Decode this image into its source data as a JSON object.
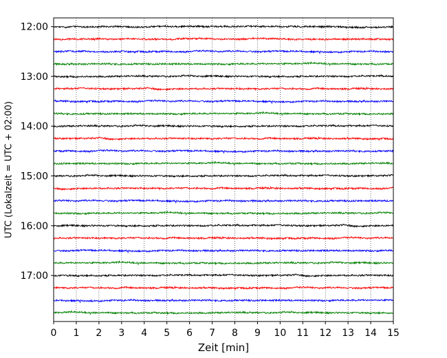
{
  "chart_data": {
    "type": "line",
    "title": "",
    "xlabel": "Zeit  [min]",
    "ylabel": "UTC (Lokalzeit = UTC + 02:00)",
    "xlim": [
      0,
      15
    ],
    "x_ticks": [
      0,
      1,
      2,
      3,
      4,
      5,
      6,
      7,
      8,
      9,
      10,
      11,
      12,
      13,
      14,
      15
    ],
    "x_tick_labels": [
      "0",
      "1",
      "2",
      "3",
      "4",
      "5",
      "6",
      "7",
      "8",
      "9",
      "10",
      "11",
      "12",
      "13",
      "14",
      "15"
    ],
    "y_range_rows": [
      -0.7,
      23.7
    ],
    "y_tick_labels": [
      "12:00",
      "13:00",
      "14:00",
      "15:00",
      "16:00",
      "17:00"
    ],
    "y_tick_rows": [
      0,
      4,
      8,
      12,
      16,
      20
    ],
    "grid": "vertical dotted at each minute",
    "row_interval_minutes": 15,
    "series_colors": [
      "#000000",
      "#ff0000",
      "#0000ff",
      "#008000"
    ],
    "traces": [
      {
        "start": "12:00",
        "color": "#000000"
      },
      {
        "start": "12:15",
        "color": "#ff0000"
      },
      {
        "start": "12:30",
        "color": "#0000ff"
      },
      {
        "start": "12:45",
        "color": "#008000"
      },
      {
        "start": "13:00",
        "color": "#000000"
      },
      {
        "start": "13:15",
        "color": "#ff0000"
      },
      {
        "start": "13:30",
        "color": "#0000ff"
      },
      {
        "start": "13:45",
        "color": "#008000"
      },
      {
        "start": "14:00",
        "color": "#000000"
      },
      {
        "start": "14:15",
        "color": "#ff0000"
      },
      {
        "start": "14:30",
        "color": "#0000ff"
      },
      {
        "start": "14:45",
        "color": "#008000"
      },
      {
        "start": "15:00",
        "color": "#000000"
      },
      {
        "start": "15:15",
        "color": "#ff0000"
      },
      {
        "start": "15:30",
        "color": "#0000ff"
      },
      {
        "start": "15:45",
        "color": "#008000"
      },
      {
        "start": "16:00",
        "color": "#000000"
      },
      {
        "start": "16:15",
        "color": "#ff0000"
      },
      {
        "start": "16:30",
        "color": "#0000ff"
      },
      {
        "start": "16:45",
        "color": "#008000"
      },
      {
        "start": "17:00",
        "color": "#000000"
      },
      {
        "start": "17:15",
        "color": "#ff0000"
      },
      {
        "start": "17:30",
        "color": "#0000ff"
      },
      {
        "start": "17:45",
        "color": "#008000"
      }
    ]
  }
}
